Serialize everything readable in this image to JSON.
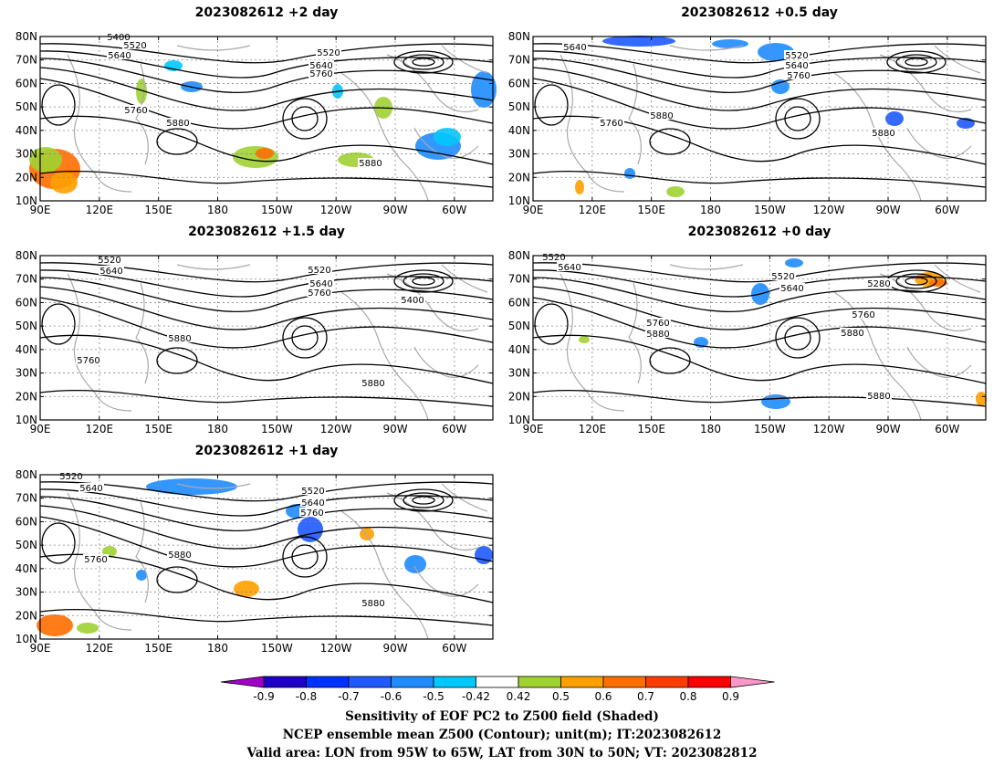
{
  "panels": [
    {
      "title": "2023082612 +2 day",
      "lat_labels": [
        "80N",
        "70N",
        "60N",
        "50N",
        "40N",
        "30N",
        "20N",
        "10N"
      ],
      "lon_labels": [
        "90E",
        "120E",
        "150E",
        "180",
        "150W",
        "120W",
        "90W",
        "60W"
      ],
      "contour_labels": [
        "5400",
        "5520",
        "5640",
        "5520",
        "5640",
        "5760",
        "5760",
        "5880",
        "5880"
      ]
    },
    {
      "title": "2023082612 +0.5 day",
      "lat_labels": [
        "80N",
        "70N",
        "60N",
        "50N",
        "40N",
        "30N",
        "20N",
        "10N"
      ],
      "lon_labels": [
        "90E",
        "120E",
        "150E",
        "180",
        "150W",
        "120W",
        "90W",
        "60W"
      ],
      "contour_labels": [
        "5640",
        "5520",
        "5640",
        "5760",
        "5760",
        "5880",
        "5880"
      ]
    },
    {
      "title": "2023082612 +1.5 day",
      "lat_labels": [
        "80N",
        "70N",
        "60N",
        "50N",
        "40N",
        "30N",
        "20N",
        "10N"
      ],
      "lon_labels": [
        "90E",
        "120E",
        "150E",
        "180",
        "150W",
        "120W",
        "90W",
        "60W"
      ],
      "contour_labels": [
        "5520",
        "5640",
        "5520",
        "5640",
        "5760",
        "5400",
        "5760",
        "5880",
        "5880"
      ]
    },
    {
      "title": "2023082612 +0 day",
      "lat_labels": [
        "80N",
        "70N",
        "60N",
        "50N",
        "40N",
        "30N",
        "20N",
        "10N"
      ],
      "lon_labels": [
        "90E",
        "120E",
        "150E",
        "180",
        "150W",
        "120W",
        "90W",
        "60W"
      ],
      "contour_labels": [
        "5520",
        "5640",
        "5520",
        "5640",
        "5280",
        "5760",
        "5880",
        "5760",
        "5880",
        "5880"
      ]
    },
    {
      "title": "2023082612 +1 day",
      "lat_labels": [
        "80N",
        "70N",
        "60N",
        "50N",
        "40N",
        "30N",
        "20N",
        "10N"
      ],
      "lon_labels": [
        "90E",
        "120E",
        "150E",
        "180",
        "150W",
        "120W",
        "90W",
        "60W"
      ],
      "contour_labels": [
        "5520",
        "5640",
        "5520",
        "5640",
        "5760",
        "5760",
        "5880",
        "5880"
      ]
    }
  ],
  "colorbar": {
    "ticks": [
      "-0.9",
      "-0.8",
      "-0.7",
      "-0.6",
      "-0.5",
      "-0.42",
      "0.42",
      "0.5",
      "0.6",
      "0.7",
      "0.8",
      "0.9"
    ],
    "colors": [
      "#a000c8",
      "#1e00c8",
      "#0032ff",
      "#1e5aff",
      "#1e8cff",
      "#00c8ff",
      "#ffffff",
      "#a0d232",
      "#ffa000",
      "#ff6e00",
      "#ff3c00",
      "#ff0000",
      "#ff96c8"
    ]
  },
  "caption": {
    "line1": "Sensitivity of EOF PC2 to Z500 field (Shaded)",
    "line2": "NCEP ensemble mean Z500 (Contour); unit(m); IT:2023082612",
    "line3": "Valid area: LON from 95W to 65W, LAT from 30N to 50N; VT: 2023082812"
  }
}
